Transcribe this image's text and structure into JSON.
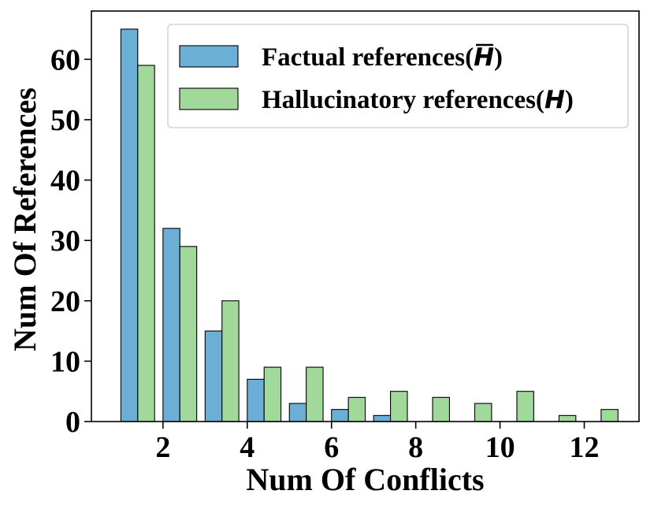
{
  "chart_data": {
    "type": "bar",
    "xlabel": "Num Of Conflicts",
    "ylabel": "Num Of References",
    "xlim": [
      0.3,
      13.3
    ],
    "ylim": [
      0,
      68
    ],
    "xticks": [
      2,
      4,
      6,
      8,
      10,
      12
    ],
    "yticks": [
      0,
      10,
      20,
      30,
      40,
      50,
      60
    ],
    "legend_placement": "top-right",
    "grid": false,
    "series": [
      {
        "name": "Factual references(H̅)",
        "legend_prefix": "Factual references(",
        "legend_symbol": "H",
        "legend_overline": true,
        "legend_suffix": ")",
        "color": "#6baed6",
        "x": [
          1,
          2,
          3,
          4,
          5,
          6,
          7,
          8,
          9,
          10,
          11,
          12
        ],
        "values": [
          65,
          32,
          15,
          7,
          3,
          2,
          1,
          0,
          0,
          0,
          0,
          0
        ]
      },
      {
        "name": "Hallucinatory references(H)",
        "legend_prefix": "Hallucinatory references(",
        "legend_symbol": "H",
        "legend_overline": false,
        "legend_suffix": ")",
        "color": "#a1d99b",
        "x": [
          1,
          2,
          3,
          4,
          5,
          6,
          7,
          8,
          9,
          10,
          11,
          12
        ],
        "values": [
          59,
          29,
          20,
          9,
          9,
          4,
          5,
          4,
          3,
          5,
          1,
          2
        ]
      }
    ]
  }
}
